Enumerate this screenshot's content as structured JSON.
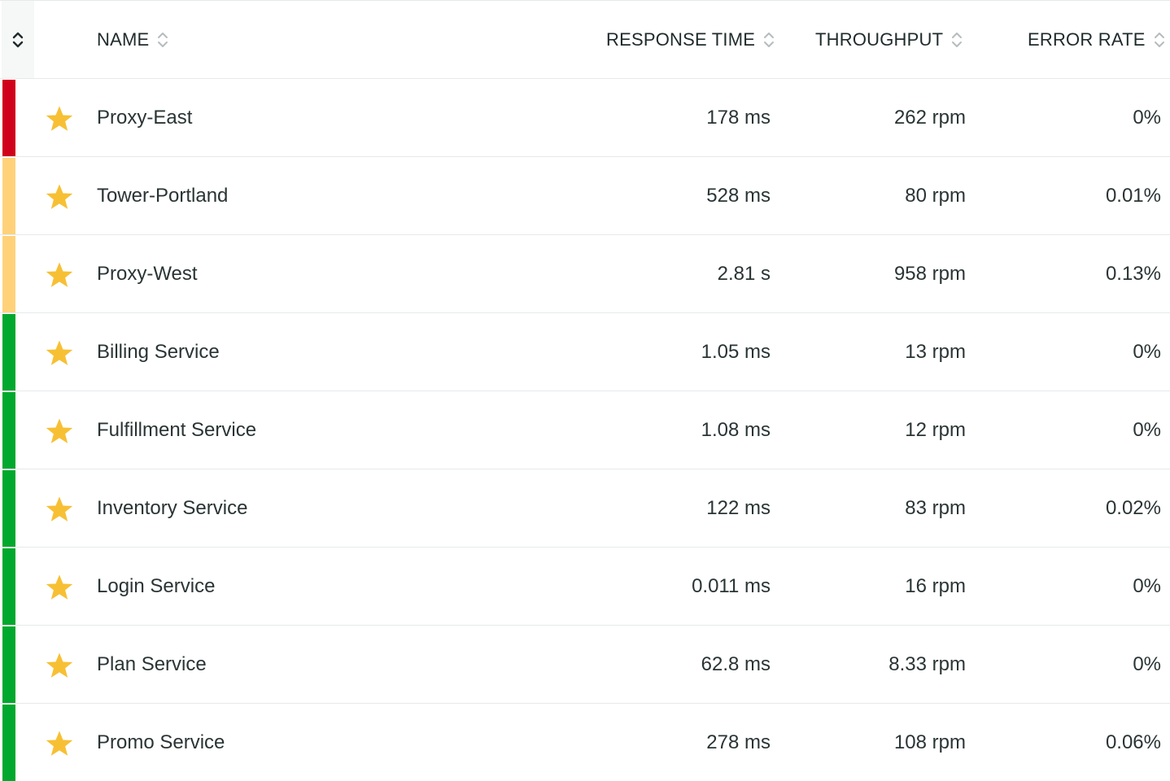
{
  "colors": {
    "critical": "#d0021b",
    "warning": "#ffd27a",
    "healthy": "#00a82d",
    "star": "#f7c034"
  },
  "header": {
    "name_label": "NAME",
    "response_time_label": "RESPONSE TIME",
    "throughput_label": "THROUGHPUT",
    "error_rate_label": "ERROR RATE"
  },
  "rows": [
    {
      "name": "Proxy-East",
      "response_time": "178 ms",
      "throughput": "262 rpm",
      "error_rate": "0%",
      "status": "critical"
    },
    {
      "name": "Tower-Portland",
      "response_time": "528 ms",
      "throughput": "80 rpm",
      "error_rate": "0.01%",
      "status": "warning"
    },
    {
      "name": "Proxy-West",
      "response_time": "2.81 s",
      "throughput": "958 rpm",
      "error_rate": "0.13%",
      "status": "warning"
    },
    {
      "name": "Billing Service",
      "response_time": "1.05 ms",
      "throughput": "13 rpm",
      "error_rate": "0%",
      "status": "healthy"
    },
    {
      "name": "Fulfillment Service",
      "response_time": "1.08 ms",
      "throughput": "12 rpm",
      "error_rate": "0%",
      "status": "healthy"
    },
    {
      "name": "Inventory Service",
      "response_time": "122 ms",
      "throughput": "83 rpm",
      "error_rate": "0.02%",
      "status": "healthy"
    },
    {
      "name": "Login Service",
      "response_time": "0.011 ms",
      "throughput": "16 rpm",
      "error_rate": "0%",
      "status": "healthy"
    },
    {
      "name": "Plan Service",
      "response_time": "62.8 ms",
      "throughput": "8.33 rpm",
      "error_rate": "0%",
      "status": "healthy"
    },
    {
      "name": "Promo Service",
      "response_time": "278 ms",
      "throughput": "108 rpm",
      "error_rate": "0.06%",
      "status": "healthy"
    }
  ]
}
